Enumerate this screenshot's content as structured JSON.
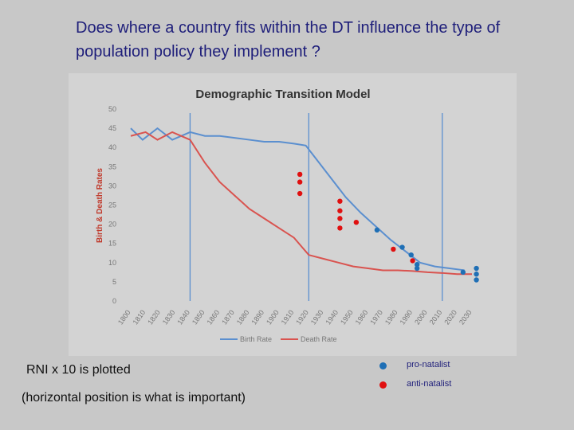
{
  "title": "Does where a country fits within the DT influence the type of population policy they implement ?",
  "notes": {
    "rni": "RNI x 10 is plotted",
    "position": "(horizontal position is what is important)"
  },
  "policy_legend": {
    "pro_label": "pro-natalist",
    "anti_label": "anti-natalist",
    "pro_color": "#1f6fb5",
    "anti_color": "#e01010"
  },
  "chart_data": {
    "type": "line",
    "title": "Demographic Transition Model",
    "xlabel": "",
    "ylabel": "Birth & Death Rates",
    "xlim": [
      1800,
      2030
    ],
    "ylim": [
      0,
      50
    ],
    "x_ticks": [
      1800,
      1810,
      1820,
      1830,
      1840,
      1850,
      1860,
      1870,
      1880,
      1890,
      1900,
      1910,
      1920,
      1930,
      1940,
      1950,
      1960,
      1970,
      1980,
      1990,
      2000,
      2010,
      2020,
      2030
    ],
    "y_ticks": [
      0,
      5,
      10,
      15,
      20,
      25,
      30,
      35,
      40,
      45,
      50
    ],
    "stage_lines": [
      1840,
      1920,
      2010
    ],
    "series": [
      {
        "name": "Birth Rate",
        "color": "#5b8fcf",
        "x": [
          1800,
          1808,
          1818,
          1828,
          1840,
          1850,
          1860,
          1870,
          1880,
          1890,
          1900,
          1910,
          1918,
          1925,
          1935,
          1945,
          1955,
          1965,
          1975,
          1985,
          1995,
          2005,
          2015,
          2025
        ],
        "values": [
          45,
          42,
          45,
          42,
          44,
          43,
          43,
          42.5,
          42,
          41.5,
          41.5,
          41,
          40.5,
          37,
          32,
          27,
          23,
          19.5,
          16,
          13,
          10,
          9,
          8.5,
          8
        ]
      },
      {
        "name": "Death Rate",
        "color": "#d9534f",
        "x": [
          1800,
          1810,
          1818,
          1828,
          1840,
          1850,
          1860,
          1870,
          1880,
          1890,
          1900,
          1910,
          1920,
          1930,
          1940,
          1950,
          1960,
          1970,
          1980,
          1990,
          2000,
          2010,
          2020,
          2030
        ],
        "values": [
          43,
          44,
          42,
          44,
          42,
          36,
          31,
          27.5,
          24,
          21.5,
          19,
          16.5,
          12,
          11,
          10,
          9,
          8.5,
          8,
          8,
          7.8,
          7.5,
          7.3,
          7,
          7
        ]
      }
    ],
    "policy_points": [
      {
        "policy": "anti",
        "x": 1914,
        "y": 33
      },
      {
        "policy": "anti",
        "x": 1914,
        "y": 31
      },
      {
        "policy": "anti",
        "x": 1914,
        "y": 28
      },
      {
        "policy": "anti",
        "x": 1941,
        "y": 26
      },
      {
        "policy": "anti",
        "x": 1941,
        "y": 23.5
      },
      {
        "policy": "anti",
        "x": 1941,
        "y": 21.5
      },
      {
        "policy": "anti",
        "x": 1941,
        "y": 19
      },
      {
        "policy": "anti",
        "x": 1952,
        "y": 20.5
      },
      {
        "policy": "pro",
        "x": 1966,
        "y": 18.5
      },
      {
        "policy": "anti",
        "x": 1977,
        "y": 13.5
      },
      {
        "policy": "pro",
        "x": 1983,
        "y": 14
      },
      {
        "policy": "pro",
        "x": 1989,
        "y": 12
      },
      {
        "policy": "anti",
        "x": 1990,
        "y": 10.5
      },
      {
        "policy": "pro",
        "x": 1993,
        "y": 9.5
      },
      {
        "policy": "pro",
        "x": 1993,
        "y": 8.5
      },
      {
        "policy": "pro",
        "x": 2024,
        "y": 7.5
      },
      {
        "policy": "pro",
        "x": 2033,
        "y": 8.5
      },
      {
        "policy": "pro",
        "x": 2033,
        "y": 7
      },
      {
        "policy": "pro",
        "x": 2033,
        "y": 5.5
      }
    ]
  }
}
